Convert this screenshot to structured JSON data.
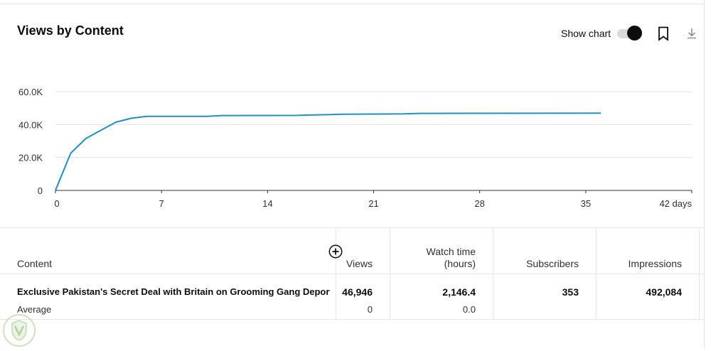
{
  "header": {
    "title": "Views by Content",
    "show_chart_label": "Show chart",
    "show_chart_on": true
  },
  "colors": {
    "line": "#1f8fc4",
    "grid": "#e0e0e0",
    "accent": "#0d0d0d"
  },
  "icons": {
    "bookmark": "bookmark-icon",
    "download": "download-icon",
    "add_column": "add-circle-icon",
    "watermark": "shield-logo-icon"
  },
  "chart_data": {
    "type": "line",
    "title": "",
    "xlabel": "",
    "ylabel": "",
    "xlim": [
      0,
      42
    ],
    "ylim": [
      0,
      60000
    ],
    "x_ticks": [
      "0",
      "7",
      "14",
      "21",
      "28",
      "35",
      "42 days"
    ],
    "y_ticks": [
      "0",
      "20.0K",
      "40.0K",
      "60.0K"
    ],
    "grid": true,
    "series": [
      {
        "name": "",
        "x": [
          0,
          1,
          2,
          3,
          4,
          5,
          6,
          7,
          10,
          11,
          16,
          17,
          18,
          19,
          23,
          24,
          36
        ],
        "y": [
          0,
          22500,
          31500,
          36500,
          41500,
          43800,
          45000,
          45000,
          45000,
          45500,
          45600,
          45900,
          46000,
          46300,
          46500,
          46800,
          46946
        ]
      }
    ]
  },
  "table": {
    "columns": {
      "content": "Content",
      "views": "Views",
      "watch_time_1": "Watch time",
      "watch_time_2": "(hours)",
      "subscribers": "Subscribers",
      "impressions": "Impressions"
    },
    "row": {
      "content": "Exclusive Pakistan's Secret Deal with Britain on Grooming Gang Deporta…",
      "views": "46,946",
      "watch_time": "2,146.4",
      "subscribers": "353",
      "impressions": "492,084"
    },
    "average": {
      "label": "Average",
      "views": "0",
      "watch_time": "0.0"
    }
  }
}
